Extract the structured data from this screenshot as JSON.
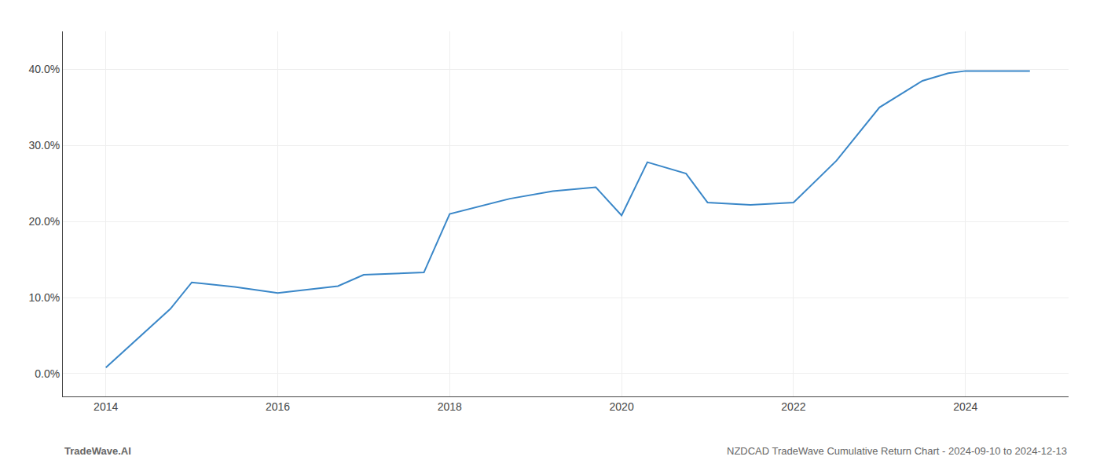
{
  "chart_data": {
    "type": "line",
    "x": [
      2014.0,
      2014.75,
      2015.0,
      2015.5,
      2016.0,
      2016.7,
      2017.0,
      2017.7,
      2018.0,
      2018.7,
      2019.2,
      2019.7,
      2020.0,
      2020.3,
      2020.75,
      2021.0,
      2021.5,
      2022.0,
      2022.5,
      2023.0,
      2023.5,
      2023.8,
      2024.0,
      2024.5,
      2024.75
    ],
    "values": [
      0.8,
      8.5,
      12.0,
      11.4,
      10.6,
      11.5,
      13.0,
      13.3,
      21.0,
      23.0,
      24.0,
      24.5,
      20.8,
      27.8,
      26.3,
      22.5,
      22.2,
      22.5,
      28.0,
      35.0,
      38.5,
      39.5,
      39.8,
      39.8,
      39.8
    ],
    "color": "#3a87c8",
    "xlim": [
      2013.5,
      2025.2
    ],
    "xticks": [
      2014,
      2016,
      2018,
      2020,
      2022,
      2024
    ],
    "ylim": [
      -3,
      45
    ],
    "yticks": [
      {
        "value": 0.0,
        "label": "0.0%"
      },
      {
        "value": 10.0,
        "label": "10.0%"
      },
      {
        "value": 20.0,
        "label": "20.0%"
      },
      {
        "value": 30.0,
        "label": "30.0%"
      },
      {
        "value": 40.0,
        "label": "40.0%"
      }
    ],
    "grid": true,
    "annotations": [
      "TradeWave.AI",
      "NZDCAD TradeWave Cumulative Return Chart - 2024-09-10 to 2024-12-13"
    ]
  }
}
